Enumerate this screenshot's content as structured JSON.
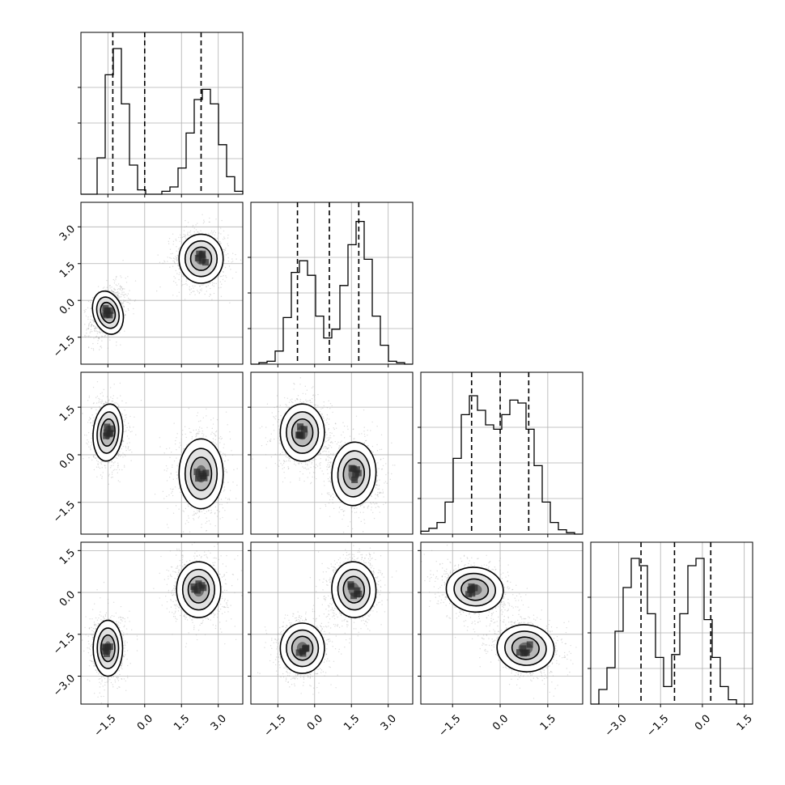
{
  "chart_data": {
    "type": "corner",
    "n_params": 4,
    "grid": true,
    "quantile_lines": "dashed",
    "contour_levels": 3,
    "panel_ranges": [
      [
        -2.6,
        4.0
      ],
      [
        -2.6,
        4.0
      ],
      [
        -2.5,
        2.6
      ],
      [
        -4.0,
        1.8
      ]
    ],
    "ticks": [
      [
        "−1.5",
        "0.0",
        "1.5",
        "3.0"
      ],
      [
        "−1.5",
        "0.0",
        "1.5",
        "3.0"
      ],
      [
        "−1.5",
        "0.0",
        "1.5"
      ],
      [
        "−3.0",
        "−1.5",
        "0.0",
        "1.5"
      ]
    ],
    "tick_values": [
      [
        -1.5,
        0.0,
        1.5,
        3.0
      ],
      [
        -1.5,
        0.0,
        1.5,
        3.0
      ],
      [
        -1.5,
        0.0,
        1.5
      ],
      [
        -3.0,
        -1.5,
        0.0,
        1.5
      ]
    ],
    "quantiles": [
      [
        -1.3,
        0.0,
        2.3
      ],
      [
        -0.7,
        0.6,
        1.8
      ],
      [
        -0.9,
        0.0,
        0.9
      ],
      [
        -2.2,
        -1.0,
        0.3
      ]
    ],
    "histograms": [
      [
        0.0,
        0.0,
        0.25,
        0.82,
        1.0,
        0.62,
        0.2,
        0.03,
        0.0,
        0.0,
        0.02,
        0.05,
        0.18,
        0.42,
        0.65,
        0.72,
        0.62,
        0.34,
        0.12,
        0.02
      ],
      [
        0.0,
        0.01,
        0.02,
        0.09,
        0.32,
        0.63,
        0.71,
        0.61,
        0.33,
        0.18,
        0.24,
        0.54,
        0.82,
        0.98,
        0.72,
        0.33,
        0.13,
        0.02,
        0.01,
        0.0
      ],
      [
        0.02,
        0.04,
        0.08,
        0.22,
        0.52,
        0.82,
        0.95,
        0.85,
        0.75,
        0.72,
        0.82,
        0.92,
        0.9,
        0.72,
        0.47,
        0.22,
        0.08,
        0.03,
        0.01,
        0.0
      ],
      [
        0.0,
        0.1,
        0.25,
        0.5,
        0.8,
        1.0,
        0.95,
        0.62,
        0.32,
        0.12,
        0.34,
        0.62,
        0.95,
        1.0,
        0.58,
        0.32,
        0.12,
        0.03,
        0.0,
        0.0
      ]
    ],
    "cross_panels": [
      {
        "row": 1,
        "col": 0,
        "clusters": [
          {
            "mx": -1.5,
            "my": -0.5,
            "sx": 0.3,
            "sy": 0.45,
            "rho": 0.35
          },
          {
            "mx": 2.3,
            "my": 1.7,
            "sx": 0.45,
            "sy": 0.5,
            "rho": 0.0
          }
        ]
      },
      {
        "row": 2,
        "col": 0,
        "clusters": [
          {
            "mx": -1.5,
            "my": 0.7,
            "sx": 0.3,
            "sy": 0.45,
            "rho": -0.1
          },
          {
            "mx": 2.3,
            "my": -0.6,
            "sx": 0.45,
            "sy": 0.55,
            "rho": 0.0
          }
        ]
      },
      {
        "row": 2,
        "col": 1,
        "clusters": [
          {
            "mx": -0.5,
            "my": 0.7,
            "sx": 0.45,
            "sy": 0.45,
            "rho": 0.0
          },
          {
            "mx": 1.6,
            "my": -0.6,
            "sx": 0.45,
            "sy": 0.5,
            "rho": -0.1
          }
        ]
      },
      {
        "row": 3,
        "col": 0,
        "clusters": [
          {
            "mx": -1.5,
            "my": -2.0,
            "sx": 0.3,
            "sy": 0.5,
            "rho": 0.0
          },
          {
            "mx": 2.2,
            "my": 0.1,
            "sx": 0.45,
            "sy": 0.5,
            "rho": 0.0
          }
        ]
      },
      {
        "row": 3,
        "col": 1,
        "clusters": [
          {
            "mx": -0.5,
            "my": -2.0,
            "sx": 0.45,
            "sy": 0.45,
            "rho": 0.0
          },
          {
            "mx": 1.6,
            "my": 0.1,
            "sx": 0.45,
            "sy": 0.5,
            "rho": 0.1
          }
        ]
      },
      {
        "row": 3,
        "col": 2,
        "clusters": [
          {
            "mx": -0.8,
            "my": 0.1,
            "sx": 0.45,
            "sy": 0.4,
            "rho": -0.2
          },
          {
            "mx": 0.8,
            "my": -2.0,
            "sx": 0.45,
            "sy": 0.42,
            "rho": -0.2
          }
        ]
      }
    ]
  }
}
